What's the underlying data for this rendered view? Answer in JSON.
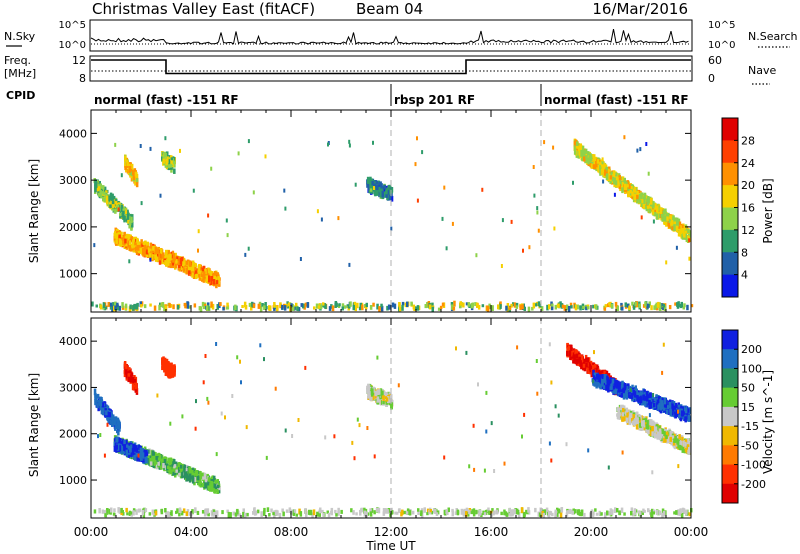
{
  "header": {
    "title": "Christmas Valley East (fitACF)",
    "beam": "Beam 04",
    "date": "16/Mar/2016"
  },
  "summary": {
    "nsky_label": "N.Sky",
    "nsearch_label": "N.Search",
    "freq_label": "Freq.",
    "freq_unit": "[MHz]",
    "nave_label": "Nave",
    "cpid_label": "CPID",
    "left_ticks_nsky": [
      "10^5",
      "10^0"
    ],
    "right_ticks_nsearch": [
      "10^5",
      "10^0"
    ],
    "left_ticks_freq": [
      "12",
      "8"
    ],
    "right_ticks_nave": [
      "60",
      "0"
    ],
    "cpid_segments": [
      {
        "label": "normal (fast) -151 RF",
        "start": 0,
        "end": 12
      },
      {
        "label": "rbsp 201 RF",
        "start": 12,
        "end": 18
      },
      {
        "label": "normal (fast) -151 RF",
        "start": 18,
        "end": 24
      }
    ],
    "freq_steps": [
      {
        "start": 0,
        "end": 3,
        "value": 12
      },
      {
        "start": 3,
        "end": 15,
        "value": 9
      },
      {
        "start": 15,
        "end": 24,
        "value": 12
      }
    ]
  },
  "colorbars": {
    "power": {
      "label": "Power [dB]",
      "ticks": [
        "28",
        "24",
        "20",
        "16",
        "12",
        "8",
        "4"
      ],
      "colors": [
        "#e00000",
        "#ff4000",
        "#ff9000",
        "#f5d000",
        "#8ed24a",
        "#2e9c6a",
        "#2060a8",
        "#0a18e8"
      ]
    },
    "velocity": {
      "label": "Velocity [m s^-1]",
      "ticks": [
        "200",
        "100",
        "50",
        "15",
        "-15",
        "-50",
        "-100",
        "-200"
      ],
      "colors": [
        "#1020e0",
        "#1f6fc0",
        "#2a9060",
        "#66cc33",
        "#c8c8c8",
        "#f0b800",
        "#ff7a00",
        "#ff3000",
        "#e00000"
      ]
    }
  },
  "axes": {
    "ylabel": "Slant Range [km]",
    "xlabel": "Time UT",
    "y_ticks": [
      "4000",
      "3000",
      "2000",
      "1000"
    ],
    "x_ticks": [
      "00:00",
      "04:00",
      "08:00",
      "12:00",
      "16:00",
      "20:00",
      "00:00"
    ]
  },
  "chart_data": [
    {
      "type": "heatmap",
      "title": "",
      "quantity": "Power",
      "unit": "dB",
      "xlabel": "Time UT",
      "ylabel": "Slant Range [km]",
      "xlim": [
        0,
        24
      ],
      "ylim": [
        180,
        4500
      ],
      "clim": [
        0,
        30
      ],
      "color_ticks": [
        4,
        8,
        12,
        16,
        20,
        24,
        28
      ],
      "regions": [
        {
          "name": "evening echo band",
          "t0": 0.9,
          "t1": 5.1,
          "r_start": 1800,
          "r_end": 850,
          "level": 20
        },
        {
          "name": "early high-range patch",
          "t0": 0.1,
          "t1": 1.6,
          "r_start": 2900,
          "r_end": 2100,
          "level": 12
        },
        {
          "name": "patch near 01:30",
          "t0": 1.3,
          "t1": 1.8,
          "r_start": 3400,
          "r_end": 3000,
          "level": 18
        },
        {
          "name": "patch near 03:00",
          "t0": 2.8,
          "t1": 3.3,
          "r_start": 3500,
          "r_end": 3300,
          "level": 14
        },
        {
          "name": "midday patch",
          "t0": 11.0,
          "t1": 12.0,
          "r_start": 2900,
          "r_end": 2700,
          "level": 6
        },
        {
          "name": "morning echo band",
          "t0": 19.3,
          "t1": 23.9,
          "r_start": 3700,
          "r_end": 1800,
          "level": 16
        },
        {
          "name": "ground scatter near-range",
          "t0": 0.0,
          "t1": 24.0,
          "r_start": 300,
          "r_end": 300,
          "level": 10
        }
      ]
    },
    {
      "type": "heatmap",
      "title": "",
      "quantity": "Velocity",
      "unit": "m s^-1",
      "xlabel": "Time UT",
      "ylabel": "Slant Range [km]",
      "xlim": [
        0,
        24
      ],
      "ylim": [
        180,
        4500
      ],
      "clim": [
        -200,
        200
      ],
      "color_ticks": [
        200,
        100,
        50,
        15,
        -15,
        -50,
        -100,
        -200
      ],
      "regions": [
        {
          "name": "evening echo band",
          "t0": 0.9,
          "t1": 5.1,
          "r_start": 1800,
          "r_end": 850,
          "level": 40
        },
        {
          "name": "evening band leading edge",
          "t0": 0.9,
          "t1": 2.2,
          "r_start": 1800,
          "r_end": 1500,
          "level": 200
        },
        {
          "name": "early high-range patch",
          "t0": 0.1,
          "t1": 1.1,
          "r_start": 2800,
          "r_end": 2100,
          "level": 180
        },
        {
          "name": "patch near 01:30",
          "t0": 1.3,
          "t1": 1.8,
          "r_start": 3400,
          "r_end": 3000,
          "level": -200
        },
        {
          "name": "patch near 03:00",
          "t0": 2.8,
          "t1": 3.3,
          "r_start": 3500,
          "r_end": 3300,
          "level": -150
        },
        {
          "name": "midday patch",
          "t0": 11.0,
          "t1": 12.0,
          "r_start": 2900,
          "r_end": 2700,
          "level": 0
        },
        {
          "name": "morning band negative",
          "t0": 19.0,
          "t1": 21.0,
          "r_start": 3800,
          "r_end": 3000,
          "level": -200
        },
        {
          "name": "morning band positive",
          "t0": 20.0,
          "t1": 23.9,
          "r_start": 3200,
          "r_end": 2400,
          "level": 200
        },
        {
          "name": "morning ground scatter",
          "t0": 21.0,
          "t1": 23.9,
          "r_start": 2500,
          "r_end": 1700,
          "level": 0
        },
        {
          "name": "ground scatter near-range",
          "t0": 0.0,
          "t1": 24.0,
          "r_start": 300,
          "r_end": 300,
          "level": 30
        }
      ]
    }
  ]
}
